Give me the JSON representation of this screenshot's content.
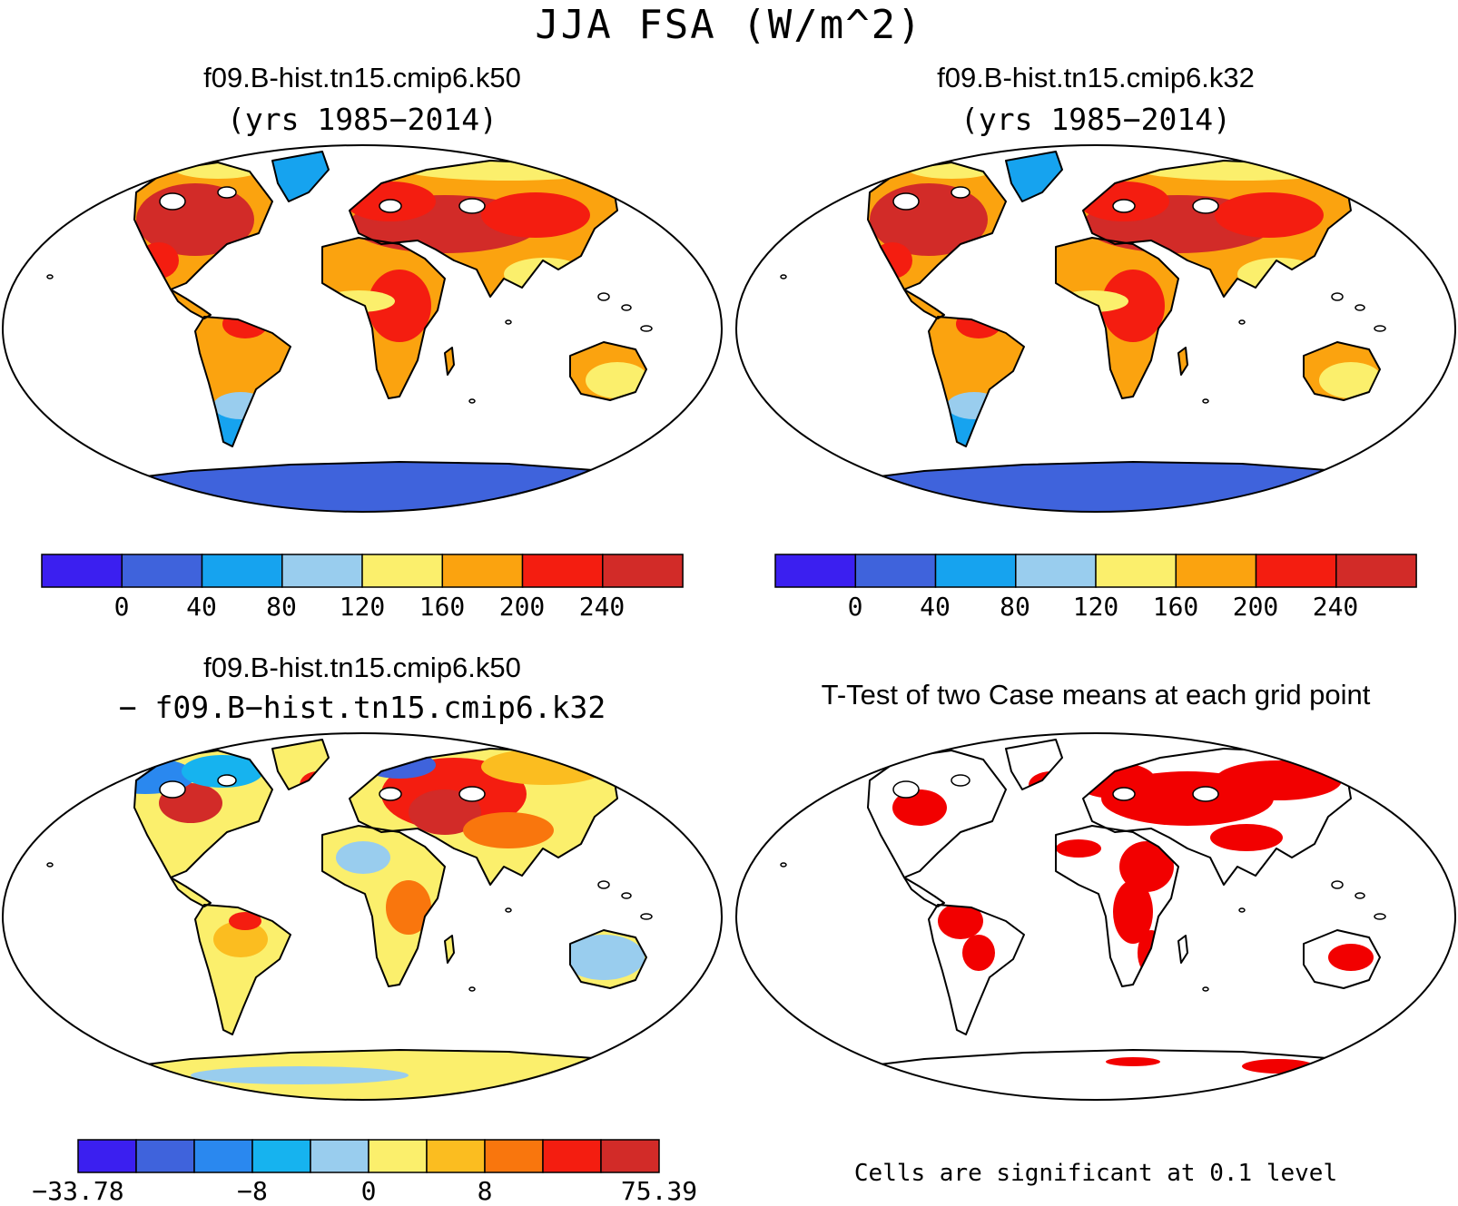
{
  "figure": {
    "main_title": "JJA FSA (W/m^2)"
  },
  "panels": [
    {
      "id": "case1",
      "title": "f09.B-hist.tn15.cmip6.k50",
      "subtitle": "(yrs 1985−2014)"
    },
    {
      "id": "case2",
      "title": "f09.B-hist.tn15.cmip6.k32",
      "subtitle": "(yrs 1985−2014)"
    },
    {
      "id": "diff",
      "title": "f09.B-hist.tn15.cmip6.k50",
      "subtitle": "− f09.B−hist.tn15.cmip6.k32"
    },
    {
      "id": "ttest",
      "title": "T-Test of two Case means at each grid point",
      "note": "Cells are significant at 0.1 level"
    }
  ],
  "colorbars": {
    "absolute": {
      "colors": [
        "#3b1ff0",
        "#3f63dc",
        "#16a3ef",
        "#99cdee",
        "#fbef6c",
        "#fba30f",
        "#f41d10",
        "#d22b28"
      ],
      "labels": [
        "0",
        "40",
        "80",
        "120",
        "160",
        "200",
        "240"
      ]
    },
    "difference": {
      "colors": [
        "#3b1ff0",
        "#3f63dc",
        "#2a88ef",
        "#16b3ef",
        "#99cdee",
        "#fbef6c",
        "#fbbd20",
        "#f9760d",
        "#f41d10",
        "#d22b28"
      ],
      "labels": [
        "−33.78",
        "−8",
        "0",
        "8",
        "75.39"
      ]
    },
    "significance_color": "#f20000"
  }
}
